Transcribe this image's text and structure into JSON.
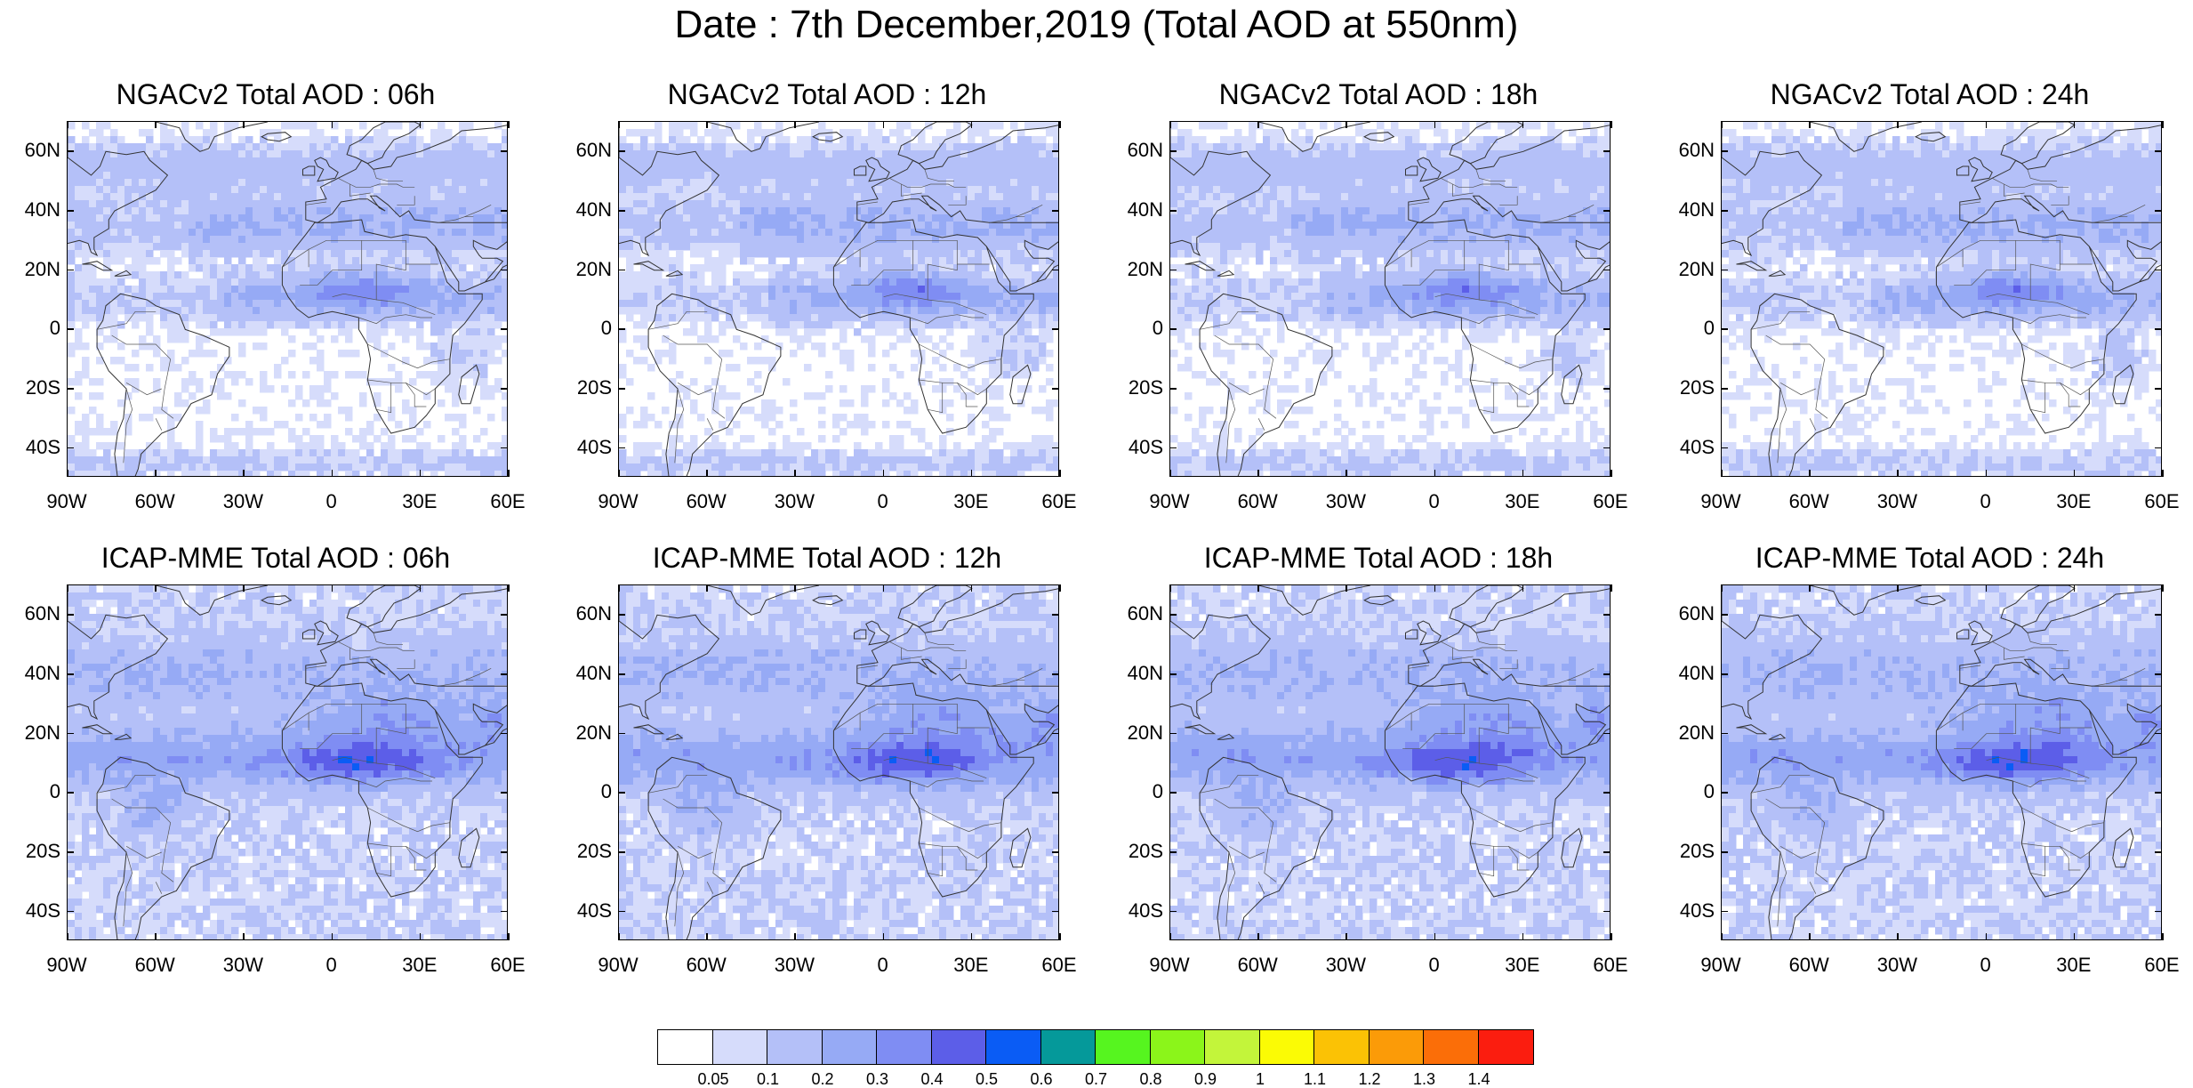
{
  "title": "Date : 7th December,2019 (Total AOD at 550nm)",
  "panels": [
    {
      "title": "NGACv2 Total AOD : 06h",
      "model": "NGACv2",
      "hour": "06h"
    },
    {
      "title": "NGACv2 Total AOD : 12h",
      "model": "NGACv2",
      "hour": "12h"
    },
    {
      "title": "NGACv2 Total AOD : 18h",
      "model": "NGACv2",
      "hour": "18h"
    },
    {
      "title": "NGACv2 Total AOD : 24h",
      "model": "NGACv2",
      "hour": "24h"
    },
    {
      "title": "ICAP-MME Total AOD : 06h",
      "model": "ICAP-MME",
      "hour": "06h"
    },
    {
      "title": "ICAP-MME Total AOD : 12h",
      "model": "ICAP-MME",
      "hour": "12h"
    },
    {
      "title": "ICAP-MME Total AOD : 18h",
      "model": "ICAP-MME",
      "hour": "18h"
    },
    {
      "title": "ICAP-MME Total AOD : 24h",
      "model": "ICAP-MME",
      "hour": "24h"
    }
  ],
  "axes": {
    "lat_labels": [
      "60N",
      "40N",
      "20N",
      "0",
      "20S",
      "40S"
    ],
    "lon_labels": [
      "90W",
      "60W",
      "30W",
      "0",
      "30E",
      "60E"
    ]
  },
  "colorbar": {
    "labels": [
      "0.05",
      "0.1",
      "0.2",
      "0.3",
      "0.4",
      "0.5",
      "0.6",
      "0.7",
      "0.8",
      "0.9",
      "1",
      "1.1",
      "1.2",
      "1.3",
      "1.4"
    ],
    "colors": [
      "#ffffff",
      "#d6dcfb",
      "#b4c0f8",
      "#96aaf5",
      "#7f8df3",
      "#5c5ee8",
      "#0a5cf5",
      "#05999a",
      "#56f51f",
      "#8bf51a",
      "#c3f53a",
      "#fbfb05",
      "#fbc205",
      "#fb9b08",
      "#fb6e08",
      "#fb1d0f"
    ]
  }
}
